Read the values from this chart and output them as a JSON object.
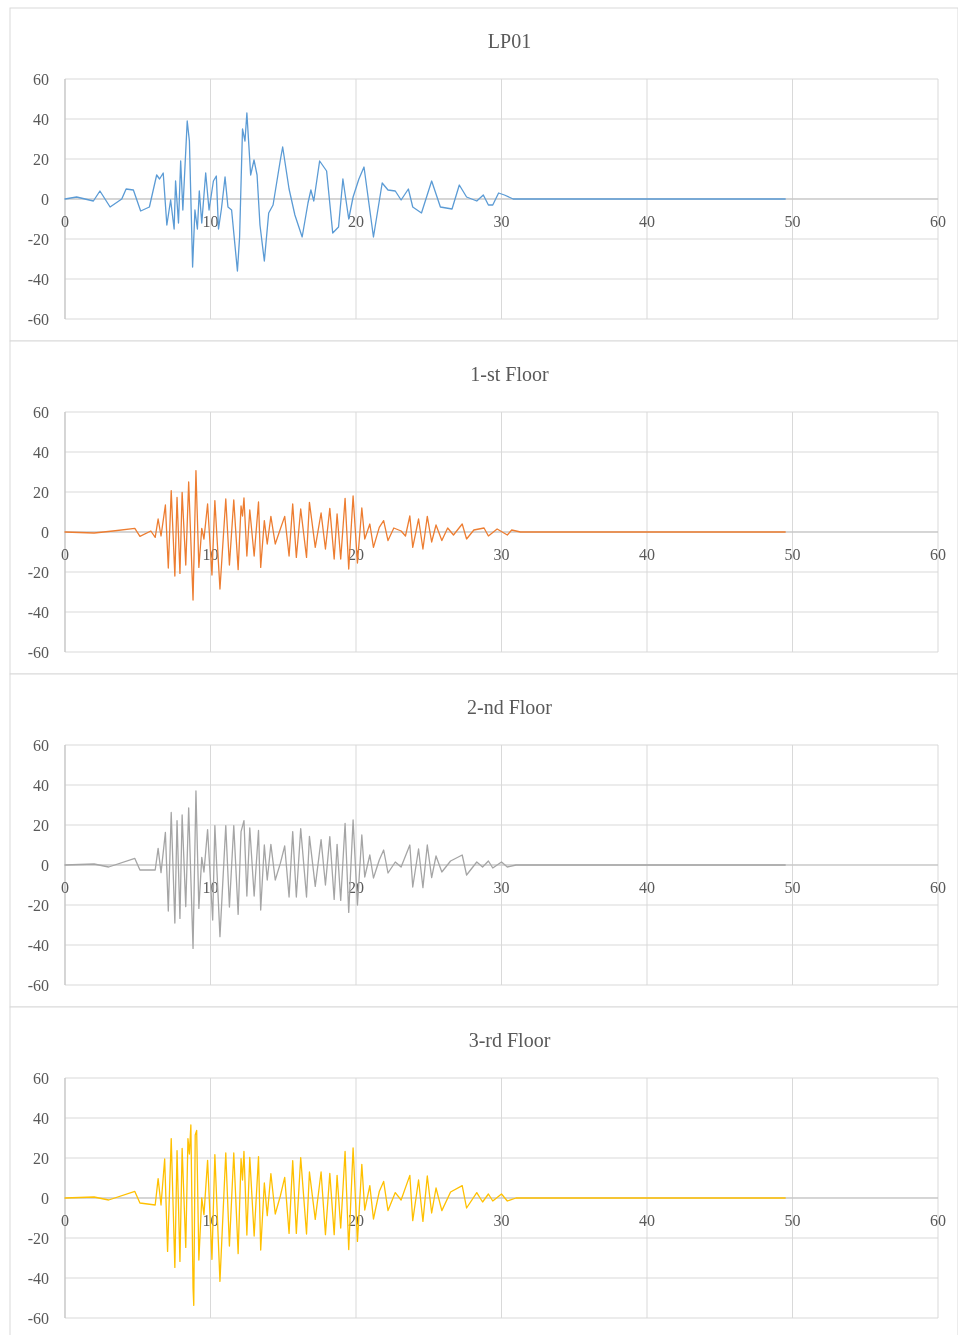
{
  "chart_data": [
    {
      "type": "line",
      "title": "LP01",
      "xlim": [
        0,
        60
      ],
      "xticks": [
        0,
        10,
        20,
        30,
        40,
        50,
        60
      ],
      "ylim": [
        -60,
        60
      ],
      "yticks": [
        -60,
        -40,
        -20,
        0,
        20,
        40,
        60
      ],
      "grid": true,
      "series": [
        {
          "color": "#5b9bd5",
          "x": [
            0,
            0.8,
            1.95,
            2.4,
            3.1,
            3.9,
            4.2,
            4.7,
            5.2,
            5.8,
            6.3,
            6.5,
            6.75,
            7.0,
            7.26,
            7.5,
            7.6,
            7.8,
            7.95,
            8.1,
            8.4,
            8.55,
            8.77,
            8.93,
            9.1,
            9.23,
            9.4,
            9.67,
            9.9,
            10.2,
            10.4,
            10.55,
            10.75,
            11.0,
            11.2,
            11.45,
            11.85,
            12.0,
            12.2,
            12.37,
            12.5,
            12.76,
            12.99,
            13.2,
            13.4,
            13.7,
            14.0,
            14.3,
            14.8,
            14.96,
            15.4,
            15.8,
            16.3,
            16.7,
            16.9,
            17.1,
            17.5,
            17.98,
            18.4,
            18.8,
            19.1,
            19.5,
            19.8,
            20.2,
            20.55,
            21.2,
            21.8,
            22.2,
            22.7,
            23.1,
            23.6,
            23.9,
            24.5,
            24.85,
            25.2,
            25.8,
            26.6,
            27.1,
            27.6,
            28.3,
            28.75,
            29.1,
            29.4,
            29.8,
            30.2,
            30.8,
            49.5
          ],
          "values": [
            0,
            1,
            -1,
            4,
            -4,
            0,
            5,
            4.5,
            -6,
            -4,
            12,
            10,
            13,
            -13,
            -0.5,
            -15,
            9,
            -12,
            19,
            -5.5,
            39,
            29,
            -34,
            -5.5,
            -15,
            4,
            -12,
            13,
            -5.5,
            9,
            11.5,
            -15,
            -5,
            11,
            -4,
            -5.5,
            -36,
            -19,
            35,
            29,
            43,
            12,
            19.5,
            12,
            -13,
            -31,
            -7,
            -3,
            19.5,
            26,
            5,
            -8,
            -19,
            -2,
            4.5,
            -1,
            19,
            14,
            -17,
            -14,
            10,
            -10,
            1,
            10,
            16,
            -19,
            8,
            4.5,
            4,
            -0.5,
            5,
            -4,
            -7,
            1,
            9,
            -4,
            -5,
            7,
            1,
            -1,
            2,
            -3,
            -3,
            3,
            2,
            0,
            0
          ]
        }
      ]
    },
    {
      "type": "line",
      "title": "1-st Floor",
      "xlim": [
        0,
        60
      ],
      "xticks": [
        0,
        10,
        20,
        30,
        40,
        50,
        60
      ],
      "ylim": [
        -60,
        60
      ],
      "yticks": [
        -60,
        -40,
        -20,
        0,
        20,
        40,
        60
      ],
      "grid": true,
      "series": [
        {
          "color": "#ed7d31",
          "x": [
            0,
            2.0,
            3.3,
            4.8,
            5.15,
            5.9,
            6.2,
            6.4,
            6.6,
            6.9,
            7.1,
            7.3,
            7.55,
            7.7,
            7.9,
            8.05,
            8.3,
            8.5,
            8.8,
            9.0,
            9.2,
            9.4,
            9.55,
            9.8,
            10.1,
            10.3,
            10.65,
            11.05,
            11.3,
            11.6,
            11.9,
            12.1,
            12.2,
            12.3,
            12.5,
            12.7,
            13.0,
            13.3,
            13.45,
            13.7,
            13.9,
            14.15,
            14.45,
            14.8,
            15.1,
            15.4,
            15.65,
            15.9,
            16.2,
            16.6,
            16.8,
            17.2,
            17.6,
            17.9,
            18.2,
            18.5,
            18.7,
            18.95,
            19.25,
            19.5,
            19.8,
            20.1,
            20.4,
            20.6,
            20.95,
            21.2,
            21.6,
            21.9,
            22.2,
            22.6,
            23.1,
            23.4,
            23.7,
            23.9,
            24.3,
            24.6,
            24.9,
            25.2,
            25.5,
            25.9,
            26.3,
            26.7,
            27.3,
            27.6,
            28.1,
            28.8,
            29.1,
            29.7,
            30.4,
            30.7,
            31.3,
            49.5
          ],
          "values": [
            0,
            -0.5,
            0.5,
            1.8,
            -2.2,
            0.5,
            -2.7,
            6.5,
            -2,
            13.5,
            -18,
            20.7,
            -22,
            17.3,
            -20.7,
            19.8,
            -16.5,
            25,
            -34,
            30.7,
            -17.7,
            1.8,
            -3.5,
            14,
            -21.5,
            15.7,
            -28.5,
            16.5,
            -16.5,
            16,
            -18.8,
            13,
            8,
            17,
            -12,
            11,
            -12,
            15,
            -17.7,
            5.7,
            -6,
            7.8,
            -6,
            1.5,
            7.8,
            -12,
            14,
            -12.7,
            11.5,
            -12.7,
            14.8,
            -7.7,
            9.5,
            -8.5,
            11.8,
            -13.5,
            9,
            -13.5,
            16.8,
            -18.5,
            18,
            -15.5,
            12,
            -3.5,
            4,
            -7.7,
            2.3,
            5.7,
            -4.3,
            2,
            0.5,
            -2,
            8,
            -7.7,
            6.5,
            -8.5,
            7.8,
            -5,
            3.5,
            -4.3,
            2,
            -1.5,
            4,
            -3.5,
            1,
            2,
            -2,
            1.5,
            -1.5,
            1,
            0,
            0
          ]
        }
      ]
    },
    {
      "type": "line",
      "title": "2-nd Floor",
      "xlim": [
        0,
        60
      ],
      "xticks": [
        0,
        10,
        20,
        30,
        40,
        50,
        60
      ],
      "ylim": [
        -60,
        60
      ],
      "yticks": [
        -60,
        -40,
        -20,
        0,
        20,
        40,
        60
      ],
      "grid": true,
      "series": [
        {
          "color": "#a5a5a5",
          "x": [
            0,
            2.0,
            3.0,
            4.8,
            5.15,
            6.2,
            6.4,
            6.6,
            6.9,
            7.1,
            7.3,
            7.55,
            7.7,
            7.9,
            8.05,
            8.3,
            8.5,
            8.8,
            9.0,
            9.2,
            9.4,
            9.55,
            9.8,
            10.15,
            10.3,
            10.65,
            11.05,
            11.3,
            11.6,
            11.9,
            12.1,
            12.3,
            12.5,
            12.7,
            13.0,
            13.3,
            13.45,
            13.7,
            13.9,
            14.15,
            14.45,
            14.8,
            15.1,
            15.4,
            15.65,
            15.9,
            16.2,
            16.6,
            16.8,
            17.2,
            17.6,
            17.9,
            18.2,
            18.5,
            18.7,
            18.95,
            19.25,
            19.5,
            19.8,
            20.1,
            20.4,
            20.6,
            20.95,
            21.2,
            21.6,
            21.9,
            22.2,
            22.7,
            23.1,
            23.7,
            23.9,
            24.3,
            24.6,
            24.9,
            25.2,
            25.5,
            25.9,
            26.5,
            27.3,
            27.6,
            28.3,
            28.7,
            29.1,
            29.4,
            30.0,
            30.4,
            31.0,
            49.5
          ],
          "values": [
            0,
            0.5,
            -1,
            3.3,
            -2.5,
            -2.5,
            8.3,
            -3.8,
            16.3,
            -23,
            26.3,
            -29,
            22.2,
            -26.7,
            25,
            -20.8,
            28.5,
            -41.7,
            37,
            -21.7,
            3.8,
            -3.5,
            17.7,
            -27.5,
            19.7,
            -35.8,
            19.7,
            -21,
            19.7,
            -24.7,
            16.7,
            22.2,
            -15.5,
            18.5,
            -15.5,
            17.3,
            -22.5,
            10,
            -7.5,
            10.3,
            -7.5,
            0.8,
            9.5,
            -16,
            16.7,
            -16,
            18.2,
            -16,
            14.3,
            -10.7,
            12.7,
            -10,
            14.2,
            -17.2,
            10.3,
            -17.7,
            20.8,
            -23.7,
            22.5,
            -20,
            15,
            -6,
            5,
            -6.5,
            2.5,
            7.5,
            -4,
            1.5,
            -1,
            10,
            -11,
            8,
            -11.3,
            10,
            -6.3,
            4.5,
            -3.5,
            2,
            5,
            -5,
            1.5,
            -1,
            2,
            -1.5,
            1.5,
            -1,
            0,
            0
          ]
        }
      ]
    },
    {
      "type": "line",
      "title": "3-rd Floor",
      "xlim": [
        0,
        60
      ],
      "xticks": [
        0,
        10,
        20,
        30,
        40,
        50,
        60
      ],
      "ylim": [
        -60,
        60
      ],
      "yticks": [
        -60,
        -40,
        -20,
        0,
        20,
        40,
        60
      ],
      "grid": true,
      "series": [
        {
          "color": "#ffc000",
          "x": [
            0,
            2.0,
            3.0,
            4.8,
            5.15,
            6.2,
            6.4,
            6.6,
            6.85,
            7.05,
            7.3,
            7.55,
            7.7,
            7.9,
            8.05,
            8.3,
            8.45,
            8.55,
            8.65,
            8.8,
            8.85,
            8.95,
            9.05,
            9.2,
            9.4,
            9.55,
            9.8,
            10.1,
            10.3,
            10.65,
            11.05,
            11.3,
            11.6,
            11.9,
            12.1,
            12.2,
            12.3,
            12.5,
            12.7,
            13.0,
            13.3,
            13.45,
            13.7,
            13.9,
            14.15,
            14.45,
            14.8,
            15.1,
            15.4,
            15.65,
            15.9,
            16.2,
            16.6,
            16.8,
            17.2,
            17.6,
            17.9,
            18.2,
            18.5,
            18.7,
            18.95,
            19.25,
            19.5,
            19.8,
            20.1,
            20.4,
            20.6,
            20.95,
            21.2,
            21.6,
            21.9,
            22.2,
            22.7,
            23.1,
            23.7,
            23.9,
            24.3,
            24.6,
            24.9,
            25.2,
            25.5,
            25.9,
            26.5,
            27.3,
            27.6,
            28.3,
            28.7,
            29.1,
            29.4,
            30.0,
            30.4,
            31.0,
            49.5
          ],
          "values": [
            0,
            0.5,
            -1,
            3.3,
            -2.5,
            -3.5,
            9.7,
            -3.5,
            19.5,
            -26.7,
            29.7,
            -34.7,
            23.7,
            -31.7,
            24.8,
            -24.7,
            29.7,
            22,
            36.5,
            -45,
            -53.7,
            31.5,
            33.8,
            -31,
            0,
            -8.3,
            18.8,
            -30.7,
            21.7,
            -41.7,
            22.5,
            -24,
            22.5,
            -27.8,
            19.7,
            9,
            23.3,
            -18.5,
            20.3,
            -19,
            20.7,
            -26,
            7.5,
            -8.8,
            12.2,
            -8,
            1,
            10.3,
            -17.7,
            18.7,
            -17.7,
            20.2,
            -18,
            13,
            -10.7,
            13,
            -18.3,
            12.3,
            -18.3,
            11.3,
            -15,
            23.3,
            -25.8,
            25,
            -21.7,
            16.8,
            -6,
            6.2,
            -10.5,
            3.2,
            8.3,
            -6.3,
            2.7,
            -1,
            11.3,
            -11.3,
            9,
            -11.7,
            11,
            -7.5,
            5,
            -6.3,
            3,
            6.2,
            -5,
            2.7,
            -2,
            2,
            -1.5,
            2,
            -1.5,
            0,
            0
          ]
        }
      ]
    }
  ]
}
